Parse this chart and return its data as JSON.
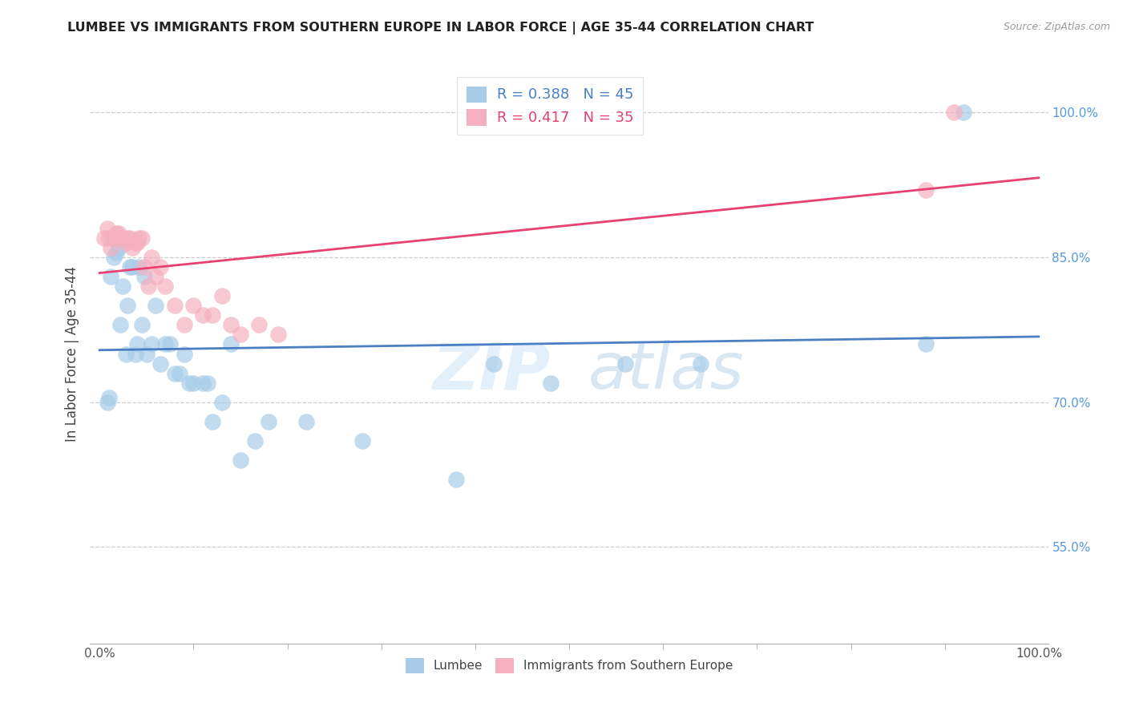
{
  "title": "LUMBEE VS IMMIGRANTS FROM SOUTHERN EUROPE IN LABOR FORCE | AGE 35-44 CORRELATION CHART",
  "source": "Source: ZipAtlas.com",
  "ylabel": "In Labor Force | Age 35-44",
  "xlim": [
    0.0,
    1.0
  ],
  "ylim": [
    0.45,
    1.05
  ],
  "x_tick_labels": [
    "0.0%",
    "100.0%"
  ],
  "y_tick_labels": [
    "55.0%",
    "70.0%",
    "85.0%",
    "100.0%"
  ],
  "y_tick_positions": [
    0.55,
    0.7,
    0.85,
    1.0
  ],
  "lumbee_R": 0.388,
  "lumbee_N": 45,
  "immigrants_R": 0.417,
  "immigrants_N": 35,
  "lumbee_color": "#a8cce8",
  "immigrants_color": "#f4b0c0",
  "lumbee_line_color": "#4a7fc4",
  "immigrants_line_color": "#e84070",
  "background_color": "#ffffff",
  "watermark_zip": "ZIP",
  "watermark_atlas": "atlas",
  "lumbee_x": [
    0.008,
    0.01,
    0.012,
    0.015,
    0.018,
    0.02,
    0.022,
    0.025,
    0.028,
    0.03,
    0.032,
    0.035,
    0.038,
    0.04,
    0.042,
    0.045,
    0.048,
    0.05,
    0.055,
    0.06,
    0.065,
    0.07,
    0.075,
    0.08,
    0.085,
    0.09,
    0.095,
    0.1,
    0.11,
    0.115,
    0.12,
    0.13,
    0.14,
    0.15,
    0.165,
    0.18,
    0.22,
    0.28,
    0.38,
    0.42,
    0.48,
    0.56,
    0.64,
    0.88,
    0.92
  ],
  "lumbee_y": [
    0.7,
    0.705,
    0.83,
    0.85,
    0.855,
    0.86,
    0.78,
    0.82,
    0.75,
    0.8,
    0.84,
    0.84,
    0.75,
    0.76,
    0.84,
    0.78,
    0.83,
    0.75,
    0.76,
    0.8,
    0.74,
    0.76,
    0.76,
    0.73,
    0.73,
    0.75,
    0.72,
    0.72,
    0.72,
    0.72,
    0.68,
    0.7,
    0.76,
    0.64,
    0.66,
    0.68,
    0.68,
    0.66,
    0.62,
    0.74,
    0.72,
    0.74,
    0.74,
    0.76,
    1.0
  ],
  "immigrants_x": [
    0.005,
    0.008,
    0.01,
    0.012,
    0.015,
    0.018,
    0.02,
    0.022,
    0.025,
    0.028,
    0.03,
    0.032,
    0.035,
    0.038,
    0.04,
    0.042,
    0.045,
    0.048,
    0.052,
    0.055,
    0.06,
    0.065,
    0.07,
    0.08,
    0.09,
    0.1,
    0.11,
    0.12,
    0.13,
    0.14,
    0.15,
    0.17,
    0.19,
    0.88,
    0.91
  ],
  "immigrants_y": [
    0.87,
    0.88,
    0.87,
    0.86,
    0.87,
    0.875,
    0.875,
    0.87,
    0.87,
    0.865,
    0.87,
    0.87,
    0.86,
    0.865,
    0.865,
    0.87,
    0.87,
    0.84,
    0.82,
    0.85,
    0.83,
    0.84,
    0.82,
    0.8,
    0.78,
    0.8,
    0.79,
    0.79,
    0.81,
    0.78,
    0.77,
    0.78,
    0.77,
    0.92,
    1.0
  ]
}
